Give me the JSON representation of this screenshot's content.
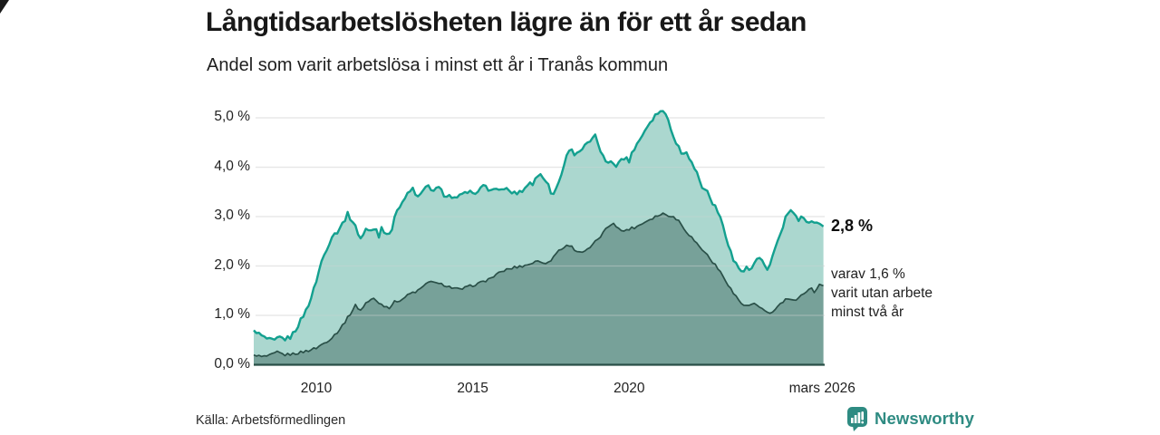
{
  "header": {
    "title": "Långtidsarbetslösheten lägre än för ett år sedan",
    "subtitle": "Andel som varit arbetslösa i minst ett år i Tranås kommun"
  },
  "annotations": {
    "total_label": "2,8 %",
    "breakdown_lines": [
      "varav 1,6 %",
      "varit utan arbete",
      "minst två år"
    ]
  },
  "source": {
    "label": "Källa: Arbetsförmedlingen"
  },
  "branding": {
    "name": "Newsworthy"
  },
  "colors": {
    "line_total": "#13A08F",
    "fill_total": "rgba(46,154,136,0.40)",
    "line_two_years": "#2A5048",
    "fill_two_years": "rgba(42,80,72,0.40)",
    "grid": "#D9D9D9",
    "grid_overlay": "rgba(255,255,255,0.35)",
    "baseline": "#2A5048",
    "brand_teal": "#2E8B82"
  },
  "chart_data": {
    "type": "area",
    "title": "Långtidsarbetslösheten lägre än för ett år sedan",
    "subtitle": "Andel som varit arbetslösa i minst ett år i Tranås kommun",
    "unit": "%",
    "grid": true,
    "x_start": 2008.0,
    "x_end": 2026.25,
    "ylim": [
      0,
      5.3
    ],
    "y_ticks": [
      {
        "label": "0,0 %",
        "value": 0
      },
      {
        "label": "1,0 %",
        "value": 1
      },
      {
        "label": "2,0 %",
        "value": 2
      },
      {
        "label": "3,0 %",
        "value": 3
      },
      {
        "label": "4,0 %",
        "value": 4
      },
      {
        "label": "5,0 %",
        "value": 5
      }
    ],
    "x_ticks": [
      {
        "label": "2010",
        "year": 2010
      },
      {
        "label": "2015",
        "year": 2015
      },
      {
        "label": "2020",
        "year": 2020
      },
      {
        "label": "mars 2026",
        "year": 2026.17
      }
    ],
    "series": [
      {
        "name": "Arbetslösa minst ett år",
        "end_value": 2.8,
        "end_label": "2,8 %",
        "jitter": 0.045,
        "points": [
          [
            2008.0,
            0.7
          ],
          [
            2008.17,
            0.62
          ],
          [
            2008.33,
            0.55
          ],
          [
            2008.5,
            0.5
          ],
          [
            2008.67,
            0.48
          ],
          [
            2008.83,
            0.55
          ],
          [
            2009.0,
            0.52
          ],
          [
            2009.17,
            0.56
          ],
          [
            2009.33,
            0.7
          ],
          [
            2009.5,
            0.9
          ],
          [
            2009.67,
            1.1
          ],
          [
            2009.83,
            1.35
          ],
          [
            2010.0,
            1.7
          ],
          [
            2010.17,
            2.1
          ],
          [
            2010.33,
            2.35
          ],
          [
            2010.5,
            2.6
          ],
          [
            2010.67,
            2.7
          ],
          [
            2010.83,
            2.85
          ],
          [
            2011.0,
            3.05
          ],
          [
            2011.17,
            2.9
          ],
          [
            2011.42,
            2.55
          ],
          [
            2011.58,
            2.75
          ],
          [
            2011.75,
            2.7
          ],
          [
            2011.92,
            2.75
          ],
          [
            2012.0,
            2.6
          ],
          [
            2012.08,
            2.78
          ],
          [
            2012.25,
            2.65
          ],
          [
            2012.42,
            2.75
          ],
          [
            2012.58,
            3.15
          ],
          [
            2012.75,
            3.3
          ],
          [
            2012.92,
            3.45
          ],
          [
            2013.08,
            3.57
          ],
          [
            2013.25,
            3.38
          ],
          [
            2013.42,
            3.52
          ],
          [
            2013.58,
            3.62
          ],
          [
            2013.75,
            3.52
          ],
          [
            2013.92,
            3.58
          ],
          [
            2014.08,
            3.45
          ],
          [
            2014.25,
            3.42
          ],
          [
            2014.5,
            3.35
          ],
          [
            2014.67,
            3.48
          ],
          [
            2014.83,
            3.44
          ],
          [
            2015.0,
            3.52
          ],
          [
            2015.17,
            3.48
          ],
          [
            2015.33,
            3.62
          ],
          [
            2015.42,
            3.67
          ],
          [
            2015.5,
            3.5
          ],
          [
            2015.67,
            3.58
          ],
          [
            2015.83,
            3.5
          ],
          [
            2016.0,
            3.58
          ],
          [
            2016.17,
            3.52
          ],
          [
            2016.33,
            3.47
          ],
          [
            2016.5,
            3.5
          ],
          [
            2016.67,
            3.57
          ],
          [
            2016.83,
            3.71
          ],
          [
            2016.92,
            3.65
          ],
          [
            2017.0,
            3.75
          ],
          [
            2017.17,
            3.88
          ],
          [
            2017.33,
            3.75
          ],
          [
            2017.5,
            3.5
          ],
          [
            2017.58,
            3.45
          ],
          [
            2017.75,
            3.7
          ],
          [
            2017.92,
            4.05
          ],
          [
            2018.08,
            4.38
          ],
          [
            2018.25,
            4.28
          ],
          [
            2018.42,
            4.33
          ],
          [
            2018.58,
            4.42
          ],
          [
            2018.75,
            4.52
          ],
          [
            2018.92,
            4.62
          ],
          [
            2019.08,
            4.35
          ],
          [
            2019.25,
            4.08
          ],
          [
            2019.42,
            4.14
          ],
          [
            2019.58,
            4.05
          ],
          [
            2019.75,
            4.14
          ],
          [
            2019.92,
            4.2
          ],
          [
            2020.0,
            4.13
          ],
          [
            2020.17,
            4.4
          ],
          [
            2020.33,
            4.55
          ],
          [
            2020.5,
            4.75
          ],
          [
            2020.67,
            4.92
          ],
          [
            2020.83,
            5.05
          ],
          [
            2021.0,
            5.15
          ],
          [
            2021.17,
            5.08
          ],
          [
            2021.25,
            5.0
          ],
          [
            2021.42,
            4.58
          ],
          [
            2021.58,
            4.42
          ],
          [
            2021.67,
            4.28
          ],
          [
            2021.83,
            4.34
          ],
          [
            2022.0,
            4.08
          ],
          [
            2022.17,
            3.88
          ],
          [
            2022.33,
            3.6
          ],
          [
            2022.5,
            3.5
          ],
          [
            2022.67,
            3.28
          ],
          [
            2022.83,
            3.1
          ],
          [
            2023.0,
            2.82
          ],
          [
            2023.17,
            2.45
          ],
          [
            2023.33,
            2.12
          ],
          [
            2023.5,
            1.96
          ],
          [
            2023.62,
            1.88
          ],
          [
            2023.75,
            1.95
          ],
          [
            2023.88,
            1.9
          ],
          [
            2024.0,
            2.05
          ],
          [
            2024.12,
            2.15
          ],
          [
            2024.25,
            2.08
          ],
          [
            2024.42,
            1.93
          ],
          [
            2024.58,
            2.18
          ],
          [
            2024.71,
            2.45
          ],
          [
            2024.83,
            2.62
          ],
          [
            2024.96,
            2.9
          ],
          [
            2025.08,
            3.08
          ],
          [
            2025.17,
            3.13
          ],
          [
            2025.29,
            3.02
          ],
          [
            2025.42,
            2.88
          ],
          [
            2025.54,
            3.02
          ],
          [
            2025.67,
            2.93
          ],
          [
            2025.83,
            2.88
          ],
          [
            2025.96,
            2.93
          ],
          [
            2026.08,
            2.86
          ],
          [
            2026.21,
            2.8
          ]
        ]
      },
      {
        "name": "Varav utan arbete minst två år",
        "end_value": 1.6,
        "end_label": "1,6 %",
        "jitter": 0.028,
        "points": [
          [
            2008.0,
            0.2
          ],
          [
            2008.25,
            0.16
          ],
          [
            2008.5,
            0.18
          ],
          [
            2008.75,
            0.25
          ],
          [
            2009.0,
            0.2
          ],
          [
            2009.25,
            0.22
          ],
          [
            2009.5,
            0.25
          ],
          [
            2009.75,
            0.29
          ],
          [
            2010.0,
            0.34
          ],
          [
            2010.25,
            0.44
          ],
          [
            2010.5,
            0.55
          ],
          [
            2010.75,
            0.72
          ],
          [
            2011.0,
            0.95
          ],
          [
            2011.25,
            1.2
          ],
          [
            2011.42,
            1.1
          ],
          [
            2011.58,
            1.25
          ],
          [
            2011.83,
            1.34
          ],
          [
            2012.08,
            1.22
          ],
          [
            2012.33,
            1.16
          ],
          [
            2012.5,
            1.27
          ],
          [
            2012.75,
            1.33
          ],
          [
            2013.0,
            1.44
          ],
          [
            2013.25,
            1.5
          ],
          [
            2013.5,
            1.62
          ],
          [
            2013.67,
            1.71
          ],
          [
            2013.83,
            1.64
          ],
          [
            2014.08,
            1.62
          ],
          [
            2014.33,
            1.56
          ],
          [
            2014.58,
            1.52
          ],
          [
            2014.83,
            1.57
          ],
          [
            2015.0,
            1.61
          ],
          [
            2015.25,
            1.66
          ],
          [
            2015.5,
            1.73
          ],
          [
            2015.75,
            1.82
          ],
          [
            2016.0,
            1.91
          ],
          [
            2016.33,
            1.97
          ],
          [
            2016.67,
            2.01
          ],
          [
            2017.08,
            2.1
          ],
          [
            2017.42,
            2.06
          ],
          [
            2017.75,
            2.32
          ],
          [
            2018.08,
            2.43
          ],
          [
            2018.33,
            2.3
          ],
          [
            2018.58,
            2.28
          ],
          [
            2018.83,
            2.42
          ],
          [
            2019.08,
            2.6
          ],
          [
            2019.33,
            2.8
          ],
          [
            2019.5,
            2.88
          ],
          [
            2019.75,
            2.7
          ],
          [
            2020.0,
            2.75
          ],
          [
            2020.25,
            2.8
          ],
          [
            2020.58,
            2.92
          ],
          [
            2020.83,
            3.0
          ],
          [
            2021.08,
            3.06
          ],
          [
            2021.33,
            3.02
          ],
          [
            2021.58,
            2.92
          ],
          [
            2021.83,
            2.7
          ],
          [
            2022.17,
            2.45
          ],
          [
            2022.5,
            2.22
          ],
          [
            2022.83,
            1.95
          ],
          [
            2023.08,
            1.72
          ],
          [
            2023.33,
            1.45
          ],
          [
            2023.58,
            1.25
          ],
          [
            2023.75,
            1.18
          ],
          [
            2024.0,
            1.24
          ],
          [
            2024.17,
            1.14
          ],
          [
            2024.42,
            1.07
          ],
          [
            2024.58,
            1.05
          ],
          [
            2024.75,
            1.18
          ],
          [
            2024.92,
            1.28
          ],
          [
            2025.08,
            1.34
          ],
          [
            2025.33,
            1.28
          ],
          [
            2025.58,
            1.45
          ],
          [
            2025.79,
            1.57
          ],
          [
            2025.92,
            1.48
          ],
          [
            2026.08,
            1.63
          ],
          [
            2026.21,
            1.6
          ]
        ]
      }
    ]
  }
}
